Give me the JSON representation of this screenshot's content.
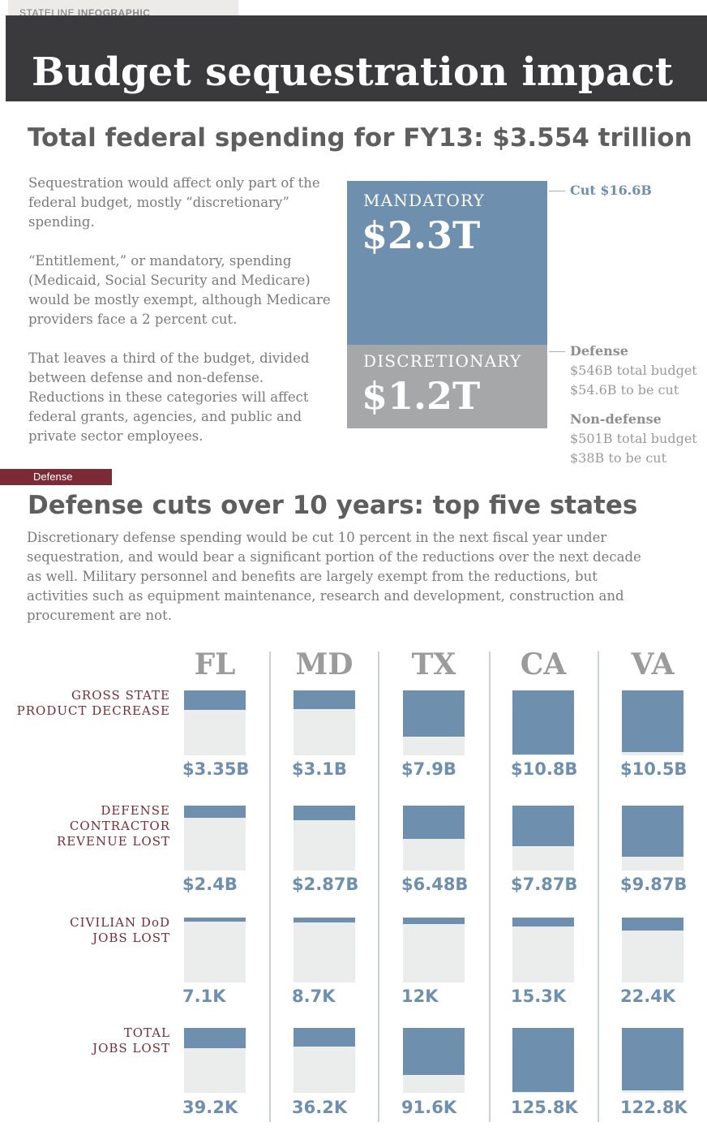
{
  "header": {
    "tag_prefix": "STATELINE",
    "tag_suffix": "INFOGRAPHIC",
    "title": "Budget sequestration impact"
  },
  "overview": {
    "title": "Total federal spending for FY13: $3.554 trillion",
    "paragraphs": [
      "Sequestration would affect only part of the federal budget, mostly “discretionary” spending.",
      "“Entitlement,” or mandatory, spending (Medicaid, Social Security and Medicare) would be mostly exempt, although Medicare providers face a 2 percent cut.",
      "That leaves a third of the budget, divided between defense and non-defense. Reductions in these categories will affect federal grants, agencies, and public and private sector employees."
    ],
    "mandatory": {
      "label": "MANDATORY",
      "value": "$2.3T",
      "note": "Cut $16.6B"
    },
    "discretionary": {
      "label": "DISCRETIONARY",
      "value": "$1.2T"
    },
    "defense_note": {
      "title": "Defense",
      "budget": "$546B total budget",
      "cut": "$54.6B to be cut"
    },
    "nondefense_note": {
      "title": "Non-defense",
      "budget": "$501B total budget",
      "cut": "$38B to be cut"
    }
  },
  "defense": {
    "tag": "Defense",
    "title": "Defense cuts over 10 years: top five states",
    "description": "Discretionary defense spending would be cut 10 percent in the next fiscal year under sequestration, and would bear a significant portion of the reductions over the next decade as well. Military personnel and benefits are largely exempt from the reductions, but activities such as equipment maintenance, research and development, construction and procurement are not."
  },
  "colors": {
    "mandatory": "#6f8fae",
    "discretionary": "#a6a7a9",
    "dark": "#3a393b",
    "accent": "#7b2b36",
    "cell_bg": "#ebecec"
  },
  "chart_data": {
    "type": "bar",
    "categories": [
      "FL",
      "MD",
      "TX",
      "CA",
      "VA"
    ],
    "series": [
      {
        "name": "GROSS STATE PRODUCT DECREASE",
        "label_lines": [
          "GROSS STATE",
          "PRODUCT DECREASE"
        ],
        "max": 11.0,
        "values": [
          3.35,
          3.1,
          7.9,
          10.8,
          10.5
        ],
        "labels": [
          "$3.35B",
          "$3.1B",
          "$7.9B",
          "$10.8B",
          "$10.5B"
        ]
      },
      {
        "name": "DEFENSE CONTRACTOR REVENUE LOST",
        "label_lines": [
          "DEFENSE",
          "CONTRACTOR",
          "REVENUE LOST"
        ],
        "max": 12.5,
        "values": [
          2.4,
          2.87,
          6.48,
          7.87,
          9.87
        ],
        "labels": [
          "$2.4B",
          "$2.87B",
          "$6.48B",
          "$7.87B",
          "$9.87B"
        ]
      },
      {
        "name": "CIVILIAN DoD JOBS LOST",
        "label_lines": [
          "CIVILIAN DoD",
          "JOBS LOST"
        ],
        "max": 115,
        "values": [
          7.1,
          8.7,
          12,
          15.3,
          22.4
        ],
        "labels": [
          "7.1K",
          "8.7K",
          "12K",
          "15.3K",
          "22.4K"
        ]
      },
      {
        "name": "TOTAL JOBS LOST",
        "label_lines": [
          "TOTAL",
          "JOBS LOST"
        ],
        "max": 127,
        "values": [
          39.2,
          36.2,
          91.6,
          125.8,
          122.8
        ],
        "labels": [
          "39.2K",
          "36.2K",
          "91.6K",
          "125.8K",
          "122.8K"
        ]
      }
    ]
  }
}
